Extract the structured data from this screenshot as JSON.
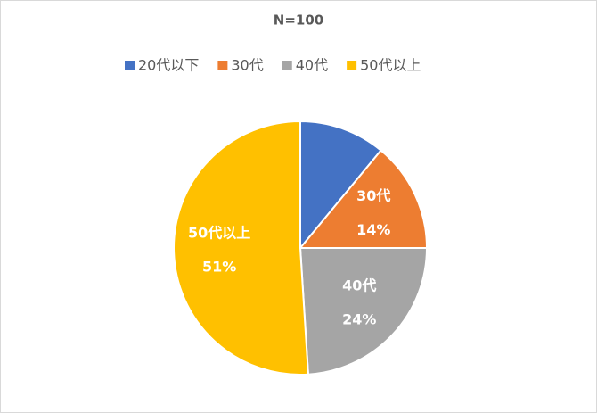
{
  "chart_data": {
    "type": "pie",
    "title": "N=100",
    "categories": [
      "20代以下",
      "30代",
      "40代",
      "50代以上"
    ],
    "values": [
      11,
      14,
      24,
      51
    ],
    "value_labels": [
      null,
      "14%",
      "24%",
      "51%"
    ],
    "colors": [
      "#4472c4",
      "#ed7d31",
      "#a5a5a5",
      "#ffc000"
    ],
    "legend": "top"
  }
}
